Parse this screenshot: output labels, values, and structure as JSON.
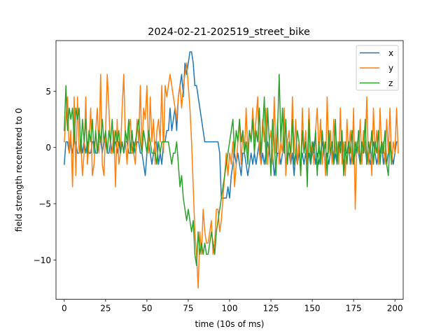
{
  "chart_data": {
    "type": "line",
    "title": "2024-02-21-202519_street_bike",
    "xlabel": "time (10s of ms)",
    "ylabel": "field strength recentered to 0",
    "xlim": [
      -5,
      205
    ],
    "ylim": [
      -13.5,
      9.5
    ],
    "x_ticks": [
      0,
      25,
      50,
      75,
      100,
      125,
      150,
      175,
      200
    ],
    "y_ticks": [
      -10,
      -5,
      0,
      5
    ],
    "legend_position": "upper right",
    "x_start": 0,
    "x_step": 1,
    "series": [
      {
        "name": "x",
        "color": "#1f77b4",
        "values": [
          -1.5,
          0.5,
          0.5,
          -0.5,
          0.5,
          -0.5,
          0.5,
          0.5,
          -0.5,
          -0.5,
          0.5,
          -0.5,
          0.5,
          -0.5,
          0.5,
          -0.5,
          -0.5,
          0.5,
          0.5,
          -0.5,
          -0.5,
          0.5,
          0.5,
          -0.5,
          0.5,
          0.5,
          -0.5,
          -0.5,
          0.5,
          -0.5,
          0.5,
          0.5,
          -0.5,
          0.5,
          -0.5,
          0.5,
          -0.5,
          0.5,
          0.5,
          -0.5,
          -0.5,
          -0.5,
          0.5,
          -0.5,
          0.5,
          0.5,
          -0.5,
          -0.5,
          -1.5,
          -2.5,
          -0.5,
          0.5,
          -0.5,
          -1.5,
          -0.5,
          0.5,
          0.5,
          -1.5,
          -0.5,
          -1.5,
          0.5,
          0.5,
          1.5,
          1.5,
          3.5,
          1.5,
          2.5,
          3.5,
          1.5,
          4.5,
          5.5,
          6.5,
          4.5,
          7.5,
          6.5,
          7.5,
          8.5,
          8.5,
          7.5,
          5.5,
          5.5,
          4.5,
          3.5,
          2.5,
          1.5,
          0.5,
          0.5,
          0.5,
          0.5,
          0.5,
          0.5,
          0.5,
          0.5,
          0.5,
          -0.5,
          -4.5,
          -4.5,
          -4.5,
          -4.5,
          -3.5,
          -4.5,
          -2.5,
          -1.5,
          -0.5,
          -1.5,
          -0.5,
          -1.5,
          -2.5,
          -0.5,
          -0.5,
          -1.5,
          -2.5,
          -1.5,
          -0.5,
          -1.5,
          -0.5,
          -1.5,
          -0.5,
          0.5,
          -1.5,
          -0.5,
          -1.5,
          -0.5,
          0.5,
          -0.5,
          -1.5,
          -0.5,
          -2.5,
          -1.5,
          -0.5,
          -0.5,
          -1.5,
          -0.5,
          0.5,
          -1.5,
          -0.5,
          -0.5,
          -1.5,
          -0.5,
          -2.5,
          -0.5,
          -1.5,
          -0.5,
          -1.5,
          -0.5,
          -1.5,
          -0.5,
          -1.5,
          -0.5,
          -1.5,
          -0.5,
          0.5,
          -1.5,
          -0.5,
          -1.5,
          -0.5,
          0.5,
          -0.5,
          -1.5,
          -0.5,
          -1.5,
          -0.5,
          0.5,
          -1.5,
          -0.5,
          -1.5,
          -0.5,
          0.5,
          -0.5,
          -1.5,
          -0.5,
          -0.5,
          0.5,
          -1.5,
          -0.5,
          -1.5,
          -0.5,
          0.5,
          -0.5,
          -1.5,
          -0.5,
          -0.5,
          0.5,
          -1.5,
          -0.5,
          -1.5,
          -0.5,
          0.5,
          -0.5,
          -1.5,
          -0.5,
          -0.5,
          0.5,
          -1.5,
          -0.5,
          -1.5,
          -0.5,
          0.5,
          -0.5,
          -1.5,
          -0.5,
          0.5
        ]
      },
      {
        "name": "y",
        "color": "#ff7f0e",
        "values": [
          0.5,
          2.5,
          4.5,
          -0.5,
          1.5,
          -3.5,
          4.5,
          -2.5,
          4.5,
          -0.5,
          0.5,
          -2.5,
          -0.5,
          4.5,
          -1.5,
          0.5,
          3.5,
          -2.5,
          -1.5,
          1.5,
          3.5,
          -0.5,
          6.5,
          -1.5,
          -2.5,
          1.5,
          6.5,
          3.5,
          -0.5,
          -0.5,
          1.5,
          -3.5,
          2.5,
          -1.5,
          -0.5,
          3.5,
          6.5,
          0.5,
          -1.5,
          1.5,
          2.5,
          -0.5,
          -0.5,
          -1.5,
          2.5,
          0.5,
          5.5,
          -0.5,
          3.5,
          2.5,
          5.5,
          -0.5,
          4.5,
          0.5,
          2.5,
          -1.5,
          1.5,
          2.5,
          0.5,
          5.5,
          -0.5,
          5.5,
          4.5,
          5.5,
          6.5,
          5.5,
          4.5,
          3.5,
          2.5,
          4.5,
          5.5,
          3.5,
          5.5,
          6.5,
          7.5,
          5.5,
          3.5,
          0.5,
          -3.5,
          -7.5,
          -9.5,
          -12.5,
          -7.5,
          -9.5,
          -5.5,
          -7.5,
          -8.5,
          -8.5,
          -7.5,
          -6.5,
          -9.5,
          -8.5,
          -5.5,
          -5.5,
          -7.5,
          -6.5,
          -4.5,
          -2.5,
          -0.5,
          -2.5,
          -0.5,
          -1.5,
          0.5,
          -3.5,
          -1.5,
          0.5,
          2.5,
          -1.5,
          1.5,
          -0.5,
          3.5,
          -0.5,
          1.5,
          0.5,
          3.5,
          0.5,
          2.5,
          4.5,
          -0.5,
          -1.5,
          2.5,
          0.5,
          3.5,
          -1.5,
          0.5,
          1.5,
          -1.5,
          4.5,
          -0.5,
          2.5,
          -1.5,
          0.5,
          -0.5,
          3.5,
          -2.5,
          0.5,
          1.5,
          -1.5,
          4.5,
          -0.5,
          2.5,
          -1.5,
          0.5,
          -2.5,
          3.5,
          -0.5,
          1.5,
          -1.5,
          3.5,
          -0.5,
          0.5,
          -1.5,
          1.5,
          3.5,
          -0.5,
          2.5,
          -1.5,
          0.5,
          -2.5,
          4.5,
          -0.5,
          1.5,
          -1.5,
          2.5,
          -0.5,
          0.5,
          -1.5,
          3.5,
          -1.5,
          0.5,
          -2.5,
          2.5,
          -0.5,
          1.5,
          -1.5,
          3.5,
          -5.5,
          0.5,
          -0.5,
          2.5,
          -1.5,
          1.5,
          -0.5,
          4.5,
          -1.5,
          0.5,
          -2.5,
          3.5,
          -0.5,
          1.5,
          -1.5,
          3.5,
          -0.5,
          0.5,
          -1.5,
          2.5,
          -0.5,
          3.5,
          -1.5,
          0.5,
          -0.5,
          3.5,
          -0.5
        ]
      },
      {
        "name": "z",
        "color": "#2ca02c",
        "values": [
          1.5,
          5.5,
          1.5,
          3.5,
          2.5,
          3.5,
          0.5,
          3.5,
          2.5,
          3.5,
          -0.5,
          2.5,
          0.5,
          2.5,
          -0.5,
          1.5,
          0.5,
          2.5,
          -0.5,
          1.5,
          -0.5,
          1.5,
          0.5,
          2.5,
          0.5,
          1.5,
          -0.5,
          1.5,
          0.5,
          2.5,
          -0.5,
          1.5,
          0.5,
          1.5,
          -0.5,
          0.5,
          -0.5,
          1.5,
          0.5,
          2.5,
          -0.5,
          1.5,
          -0.5,
          0.5,
          1.5,
          2.5,
          0.5,
          -0.5,
          1.5,
          0.5,
          -0.5,
          1.5,
          0.5,
          -0.5,
          -0.5,
          -0.5,
          -1.5,
          0.5,
          -0.5,
          0.5,
          0.5,
          0.5,
          0.5,
          0.5,
          -0.5,
          -1.5,
          -0.5,
          -0.5,
          0.5,
          -1.5,
          -3.5,
          -2.5,
          -4.5,
          -5.5,
          -6.5,
          -5.5,
          -6.5,
          -7.5,
          -6.5,
          -9.5,
          -10.5,
          -7.5,
          -9.5,
          -8.5,
          -9.5,
          -8.5,
          -9.5,
          -9.5,
          -8.5,
          -7.5,
          -8.5,
          -9.5,
          -7.5,
          -6.5,
          -5.5,
          -4.5,
          -3.5,
          -2.5,
          -1.5,
          -0.5,
          0.5,
          1.5,
          2.5,
          -0.5,
          1.5,
          0.5,
          2.5,
          0.5,
          1.5,
          -0.5,
          0.5,
          -1.5,
          1.5,
          0.5,
          2.5,
          -0.5,
          1.5,
          0.5,
          3.5,
          -0.5,
          1.5,
          4.5,
          -1.5,
          3.5,
          0.5,
          -2.5,
          2.5,
          0.5,
          -2.5,
          1.5,
          6.5,
          0.5,
          3.5,
          -0.5,
          2.5,
          -1.5,
          0.5,
          -0.5,
          2.5,
          -1.5,
          -0.5,
          1.5,
          0.5,
          -2.5,
          1.5,
          -0.5,
          0.5,
          -3.5,
          2.5,
          -1.5,
          0.5,
          -0.5,
          1.5,
          -2.5,
          0.5,
          -1.5,
          1.5,
          -0.5,
          0.5,
          -2.5,
          1.5,
          -0.5,
          0.5,
          -1.5,
          2.5,
          -1.5,
          0.5,
          -0.5,
          1.5,
          -2.5,
          0.5,
          -1.5,
          0.5,
          -0.5,
          1.5,
          -1.5,
          0.5,
          -0.5,
          1.5,
          -1.5,
          0.5,
          -0.5,
          2.5,
          -1.5,
          0.5,
          -0.5,
          1.5,
          -1.5,
          0.5,
          -0.5,
          1.5,
          -1.5,
          0.5,
          -0.5,
          1.5,
          -1.5,
          -2.5,
          0.5,
          -1.5
        ]
      }
    ]
  }
}
